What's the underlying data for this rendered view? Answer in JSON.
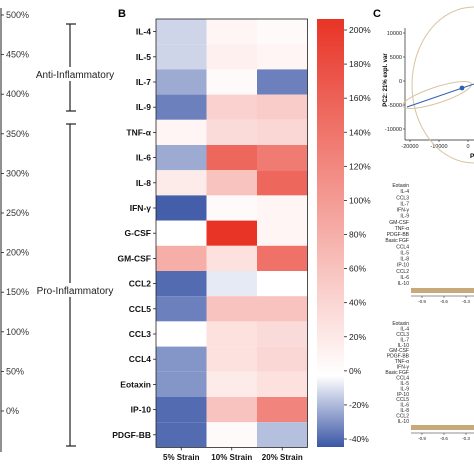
{
  "left_panel": {
    "ticks": [
      "500%",
      "450%",
      "400%",
      "350%",
      "300%",
      "250%",
      "200%",
      "150%",
      "100%",
      "50%",
      "0%"
    ],
    "group_labels": [
      "Anti-Inflammatory",
      "Pro-Inflammatory"
    ]
  },
  "panel_b": {
    "letter": "B"
  },
  "panel_c": {
    "letter": "C",
    "pc2_label": "PC2: 21% expl. var",
    "pc1_label_fragment": "PC",
    "y_ticks": [
      "10000",
      "5000",
      "0",
      "-5000",
      "-10000"
    ],
    "x_ticks": [
      "-20000",
      "-10000",
      "0"
    ],
    "loading_list_1": [
      "Eotaxin",
      "IL-4",
      "CCL3",
      "IL-7",
      "IFN-γ",
      "IL-9",
      "GM-CSF",
      "TNF-α",
      "PDGF-BB",
      "Basic FGF",
      "CCL4",
      "IL-5",
      "IL-8",
      "IP-10",
      "CCL2",
      "IL-6",
      "IL-10"
    ],
    "loading_axis_1": [
      "-0.9",
      "-0.6",
      "-0.3"
    ],
    "loading_list_2": [
      "Eotaxin",
      "IL-4",
      "CCL3",
      "IL-7",
      "IL-10",
      "GM-CSF",
      "PDGF-BB",
      "TNF-α",
      "IFN-γ",
      "Basic FGF",
      "CCL4",
      "IL-5",
      "IL-9",
      "IP-10",
      "CCL5",
      "IL-6",
      "IL-8",
      "CCL2",
      "IL-10"
    ],
    "loading_axis_2": [
      "-0.9",
      "-0.6",
      "-0.3"
    ],
    "colors": {
      "ellipse": "#d9c3a0",
      "point": "#2f5fb0",
      "bar": "#c8a97a"
    }
  },
  "chart_data": {
    "type": "heatmap",
    "title": "",
    "rows": [
      "IL-4",
      "IL-5",
      "IL-7",
      "IL-9",
      "TNF-α",
      "IL-6",
      "IL-8",
      "IFN-γ",
      "G-CSF",
      "GM-CSF",
      "CCL2",
      "CCL5",
      "CCL3",
      "CCL4",
      "Eotaxin",
      "IP-10",
      "PDGF-BB"
    ],
    "columns": [
      "5% Strain",
      "10% Strain",
      "20% Strain"
    ],
    "values": [
      [
        -10,
        10,
        5
      ],
      [
        -10,
        15,
        10
      ],
      [
        -20,
        5,
        -30
      ],
      [
        -30,
        45,
        50
      ],
      [
        10,
        35,
        40
      ],
      [
        -20,
        150,
        130
      ],
      [
        20,
        60,
        150
      ],
      [
        -38,
        5,
        10
      ],
      [
        0,
        200,
        10
      ],
      [
        80,
        30,
        140
      ],
      [
        -35,
        -5,
        0
      ],
      [
        -30,
        60,
        60
      ],
      [
        0,
        30,
        35
      ],
      [
        -25,
        30,
        40
      ],
      [
        -25,
        20,
        30
      ],
      [
        -35,
        60,
        120
      ],
      [
        -35,
        5,
        -15
      ]
    ],
    "colorbar": {
      "range": [
        -40,
        200
      ],
      "ticks": [
        "200%",
        "180%",
        "160%",
        "140%",
        "120%",
        "100%",
        "80%",
        "60%",
        "40%",
        "20%",
        "0%",
        "-20%",
        "-40%"
      ],
      "low_color": "#3a56a6",
      "mid_color": "#ffffff",
      "high_color": "#e83426"
    }
  }
}
